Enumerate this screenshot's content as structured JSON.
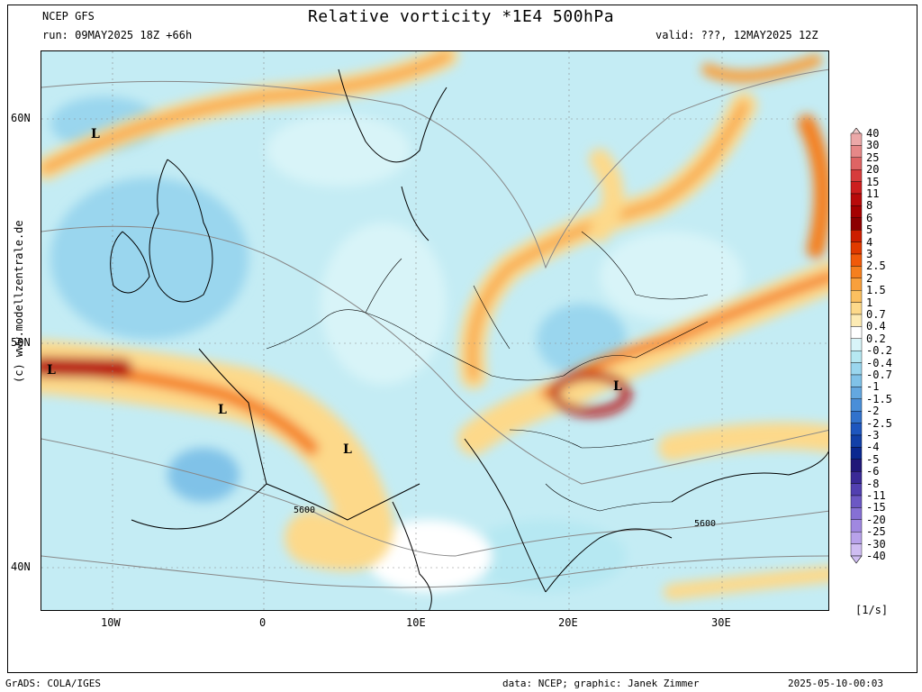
{
  "header": {
    "model": "NCEP GFS",
    "run": "run: 09MAY2025 18Z +66h",
    "title": "Relative vorticity *1E4 500hPa",
    "valid": "valid: ???, 12MAY2025 12Z"
  },
  "axes": {
    "lat_ticks": [
      "60N",
      "50N",
      "40N"
    ],
    "lon_ticks": [
      "10W",
      "0",
      "10E",
      "20E",
      "30E"
    ]
  },
  "map": {
    "contour_labels": [
      "5600",
      "5600"
    ],
    "low_markers": [
      "L",
      "L",
      "L",
      "L",
      "L"
    ]
  },
  "credit": "(c) www.modellzentrale.de",
  "colorbar": {
    "unit": "[1/s]",
    "levels": [
      "40",
      "30",
      "25",
      "20",
      "15",
      "11",
      "8",
      "6",
      "5",
      "4",
      "3",
      "2.5",
      "2",
      "1.5",
      "1",
      "0.7",
      "0.4",
      "0.2",
      "-0.2",
      "-0.4",
      "-0.7",
      "-1",
      "-1.5",
      "-2",
      "-2.5",
      "-3",
      "-4",
      "-5",
      "-6",
      "-8",
      "-11",
      "-15",
      "-20",
      "-25",
      "-30",
      "-40"
    ],
    "colors": [
      "#f0c8c8",
      "#eba8a8",
      "#e68888",
      "#de6464",
      "#d63c3c",
      "#cc1e1e",
      "#b80a0a",
      "#a50000",
      "#8c0000",
      "#cc1e00",
      "#e03a00",
      "#f05a0a",
      "#f57f1e",
      "#f8a03c",
      "#fbc060",
      "#fdd98a",
      "#fdebb4",
      "#ffffff",
      "#d8f4f8",
      "#b6e8f2",
      "#9ad6ee",
      "#80c2e8",
      "#64a8e0",
      "#4a8ed8",
      "#3272cc",
      "#1e56be",
      "#1240a8",
      "#0a2890",
      "#201878",
      "#3a2a96",
      "#5240b0",
      "#6c58c4",
      "#8670d4",
      "#a088e0",
      "#b8a2ea",
      "#cfbdf2"
    ]
  },
  "footer": {
    "left": "GrADS: COLA/IGES",
    "mid": "data: NCEP; graphic: Janek Zimmer",
    "right": "2025-05-10-00:03"
  }
}
